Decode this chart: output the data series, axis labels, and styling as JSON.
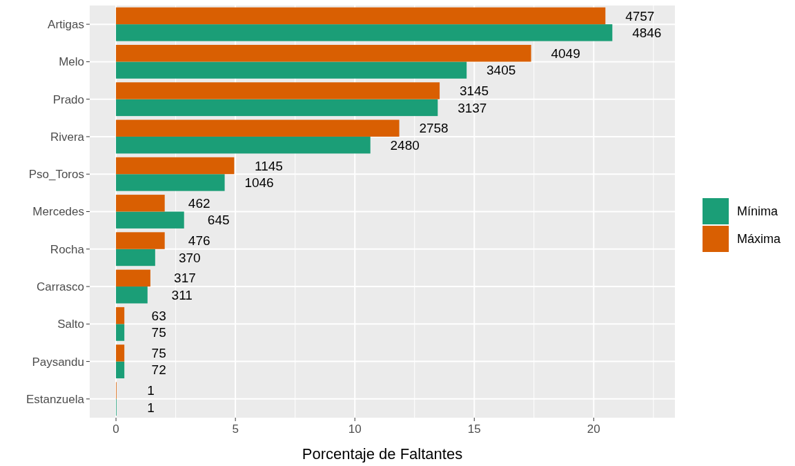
{
  "chart_data": {
    "type": "bar",
    "orientation": "horizontal",
    "xlabel": "Porcentaje de Faltantes",
    "categories": [
      "Artigas",
      "Melo",
      "Prado",
      "Rivera",
      "Pso_Toros",
      "Mercedes",
      "Rocha",
      "Carrasco",
      "Salto",
      "Paysandu",
      "Estanzuela"
    ],
    "series": [
      {
        "name": "Mínima",
        "color": "#1b9e77",
        "values": [
          20.78,
          14.68,
          13.47,
          10.65,
          4.55,
          2.85,
          1.64,
          1.32,
          0.35,
          0.35,
          0.01
        ]
      },
      {
        "name": "Máxima",
        "color": "#d95f02",
        "values": [
          20.49,
          17.38,
          13.55,
          11.86,
          4.95,
          2.04,
          2.04,
          1.44,
          0.35,
          0.35,
          0.01
        ]
      }
    ],
    "annotations": [
      {
        "text": "4846",
        "x": 20.78,
        "y": "Artigas"
      },
      {
        "text": "3405",
        "x": 14.68,
        "y": "Melo"
      },
      {
        "text": "3137",
        "x": 13.47,
        "y": "Prado"
      },
      {
        "text": "2480",
        "x": 10.65,
        "y": "Rivera"
      },
      {
        "text": "1046",
        "x": 4.55,
        "y": "Pso_Toros"
      },
      {
        "text": "645",
        "x": 2.85,
        "y": "Mercedes"
      },
      {
        "text": "370",
        "x": 1.64,
        "y": "Rocha"
      },
      {
        "text": "311",
        "x": 1.32,
        "y": "Carrasco"
      },
      {
        "text": "75",
        "x": 0.35,
        "y": "Salto"
      },
      {
        "text": "72",
        "x": 0.35,
        "y": "Paysandu"
      },
      {
        "text": "1",
        "x": 0.01,
        "y": "Estanzuela"
      },
      {
        "text": "4757",
        "x": 20.49,
        "y": "Artigas"
      },
      {
        "text": "4049",
        "x": 17.38,
        "y": "Melo"
      },
      {
        "text": "3145",
        "x": 13.55,
        "y": "Prado"
      },
      {
        "text": "2758",
        "x": 11.86,
        "y": "Rivera"
      },
      {
        "text": "1145",
        "x": 4.95,
        "y": "Pso_Toros"
      },
      {
        "text": "462",
        "x": 2.04,
        "y": "Mercedes"
      },
      {
        "text": "476",
        "x": 2.04,
        "y": "Rocha"
      },
      {
        "text": "317",
        "x": 1.44,
        "y": "Carrasco"
      },
      {
        "text": "63",
        "x": 0.35,
        "y": "Salto"
      },
      {
        "text": "75",
        "x": 0.35,
        "y": "Paysandu"
      },
      {
        "text": "1",
        "x": 0.01,
        "y": "Estanzuela"
      }
    ],
    "xlim": [
      -1.1,
      23.4
    ],
    "xticks": [
      0,
      {
        "value": 2.5,
        "label": null
      },
      5,
      {
        "value": 7.5,
        "label": null
      },
      10,
      {
        "value": 12.5,
        "label": null
      },
      15,
      {
        "value": 17.5,
        "label": null
      },
      20,
      {
        "value": 22.5,
        "label": null
      }
    ],
    "grid": true,
    "legend": "right"
  }
}
